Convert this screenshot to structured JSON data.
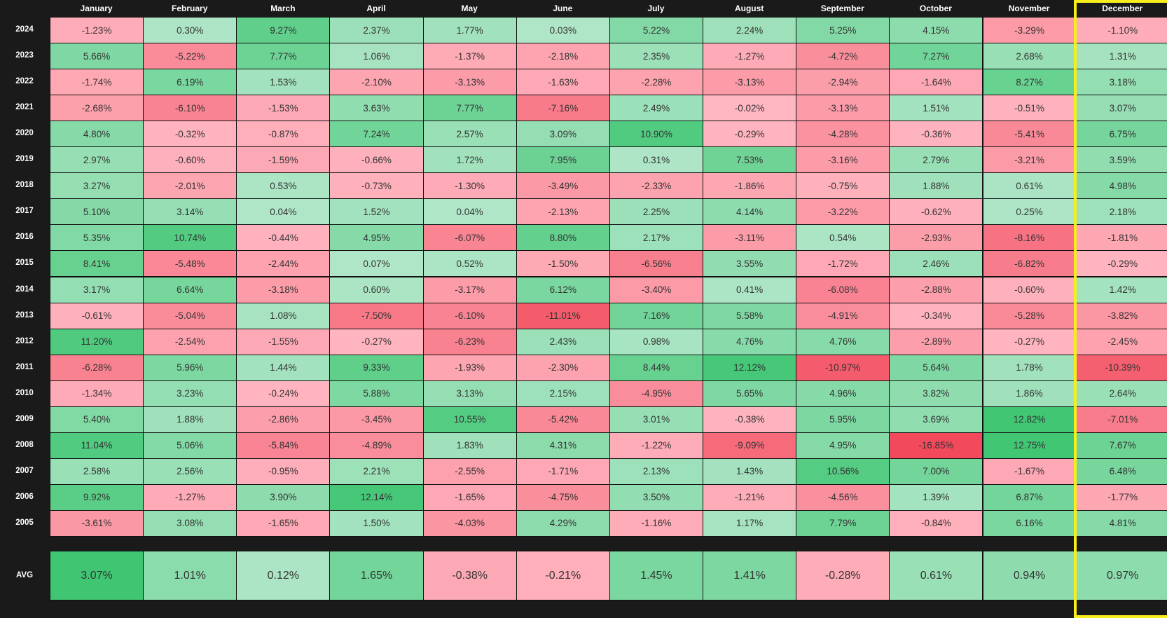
{
  "chart_data": {
    "type": "heatmap",
    "x": [
      "January",
      "February",
      "March",
      "April",
      "May",
      "June",
      "July",
      "August",
      "September",
      "October",
      "November",
      "December"
    ],
    "y": [
      "2024",
      "2023",
      "2022",
      "2021",
      "2020",
      "2019",
      "2018",
      "2017",
      "2016",
      "2015",
      "2014",
      "2013",
      "2012",
      "2011",
      "2010",
      "2009",
      "2008",
      "2007",
      "2006",
      "2005"
    ],
    "values": [
      [
        "-1.23%",
        "0.30%",
        "9.27%",
        "2.37%",
        "1.77%",
        "0.03%",
        "5.22%",
        "2.24%",
        "5.25%",
        "4.15%",
        "-3.29%",
        "-1.10%"
      ],
      [
        "5.66%",
        "-5.22%",
        "7.77%",
        "1.06%",
        "-1.37%",
        "-2.18%",
        "2.35%",
        "-1.27%",
        "-4.72%",
        "7.27%",
        "2.68%",
        "1.31%"
      ],
      [
        "-1.74%",
        "6.19%",
        "1.53%",
        "-2.10%",
        "-3.13%",
        "-1.63%",
        "-2.28%",
        "-3.13%",
        "-2.94%",
        "-1.64%",
        "8.27%",
        "3.18%"
      ],
      [
        "-2.68%",
        "-6.10%",
        "-1.53%",
        "3.63%",
        "7.77%",
        "-7.16%",
        "2.49%",
        "-0.02%",
        "-3.13%",
        "1.51%",
        "-0.51%",
        "3.07%"
      ],
      [
        "4.80%",
        "-0.32%",
        "-0.87%",
        "7.24%",
        "2.57%",
        "3.09%",
        "10.90%",
        "-0.29%",
        "-4.28%",
        "-0.36%",
        "-5.41%",
        "6.75%"
      ],
      [
        "2.97%",
        "-0.60%",
        "-1.59%",
        "-0.66%",
        "1.72%",
        "7.95%",
        "0.31%",
        "7.53%",
        "-3.16%",
        "2.79%",
        "-3.21%",
        "3.59%"
      ],
      [
        "3.27%",
        "-2.01%",
        "0.53%",
        "-0.73%",
        "-1.30%",
        "-3.49%",
        "-2.33%",
        "-1.86%",
        "-0.75%",
        "1.88%",
        "0.61%",
        "4.98%"
      ],
      [
        "5.10%",
        "3.14%",
        "0.04%",
        "1.52%",
        "0.04%",
        "-2.13%",
        "2.25%",
        "4.14%",
        "-3.22%",
        "-0.62%",
        "0.25%",
        "2.18%"
      ],
      [
        "5.35%",
        "10.74%",
        "-0.44%",
        "4.95%",
        "-6.07%",
        "8.80%",
        "2.17%",
        "-3.11%",
        "0.54%",
        "-2.93%",
        "-8.16%",
        "-1.81%"
      ],
      [
        "8.41%",
        "-5.48%",
        "-2.44%",
        "0.07%",
        "0.52%",
        "-1.50%",
        "-6.56%",
        "3.55%",
        "-1.72%",
        "2.46%",
        "-6.82%",
        "-0.29%"
      ],
      [
        "3.17%",
        "6.64%",
        "-3.18%",
        "0.60%",
        "-3.17%",
        "6.12%",
        "-3.40%",
        "0.41%",
        "-6.08%",
        "-2.88%",
        "-0.60%",
        "1.42%"
      ],
      [
        "-0.61%",
        "-5.04%",
        "1.08%",
        "-7.50%",
        "-6.10%",
        "-11.01%",
        "7.16%",
        "5.58%",
        "-4.91%",
        "-0.34%",
        "-5.28%",
        "-3.82%"
      ],
      [
        "11.20%",
        "-2.54%",
        "-1.55%",
        "-0.27%",
        "-6.23%",
        "2.43%",
        "0.98%",
        "4.76%",
        "4.76%",
        "-2.89%",
        "-0.27%",
        "-2.45%"
      ],
      [
        "-6.28%",
        "5.96%",
        "1.44%",
        "9.33%",
        "-1.93%",
        "-2.30%",
        "8.44%",
        "12.12%",
        "-10.97%",
        "5.64%",
        "1.78%",
        "-10.39%"
      ],
      [
        "-1.34%",
        "3.23%",
        "-0.24%",
        "5.88%",
        "3.13%",
        "2.15%",
        "-4.95%",
        "5.65%",
        "4.96%",
        "3.82%",
        "1.86%",
        "2.64%"
      ],
      [
        "5.40%",
        "1.88%",
        "-2.86%",
        "-3.45%",
        "10.55%",
        "-5.42%",
        "3.01%",
        "-0.38%",
        "5.95%",
        "3.69%",
        "12.82%",
        "-7.01%"
      ],
      [
        "11.04%",
        "5.06%",
        "-5.84%",
        "-4.89%",
        "1.83%",
        "4.31%",
        "-1.22%",
        "-9.09%",
        "4.95%",
        "-16.85%",
        "12.75%",
        "7.67%"
      ],
      [
        "2.58%",
        "2.56%",
        "-0.95%",
        "2.21%",
        "-2.55%",
        "-1.71%",
        "2.13%",
        "1.43%",
        "10.56%",
        "7.00%",
        "-1.67%",
        "6.48%"
      ],
      [
        "9.92%",
        "-1.27%",
        "3.90%",
        "12.14%",
        "-1.65%",
        "-4.75%",
        "3.50%",
        "-1.21%",
        "-4.56%",
        "1.39%",
        "6.87%",
        "-1.77%"
      ],
      [
        "-3.61%",
        "3.08%",
        "-1.65%",
        "1.50%",
        "-4.03%",
        "4.29%",
        "-1.16%",
        "1.17%",
        "7.79%",
        "-0.84%",
        "6.16%",
        "4.81%"
      ]
    ],
    "avg_label": "AVG",
    "avg": [
      "3.07%",
      "1.01%",
      "0.12%",
      "1.65%",
      "-0.38%",
      "-0.21%",
      "1.45%",
      "1.41%",
      "-0.28%",
      "0.61%",
      "0.94%",
      "0.97%"
    ],
    "highlighted_column": "December",
    "colors": {
      "background": "#1a1a1a",
      "positive_light": "#b0e6c8",
      "positive_strong": "#3fc672",
      "negative_light": "#ffb6c1",
      "negative_strong": "#f24a5c",
      "highlight": "#f7ee1c"
    }
  }
}
